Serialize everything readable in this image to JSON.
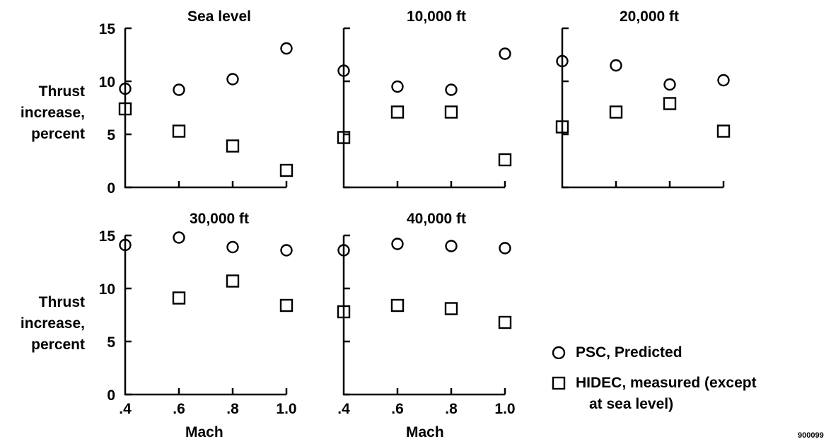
{
  "figure_id": "900099",
  "y_axis_label_lines": [
    "Thrust",
    "increase,",
    "percent"
  ],
  "x_axis_label": "Mach",
  "legend": {
    "psc": "PSC, Predicted",
    "hidec_line1": "HIDEC, measured (except",
    "hidec_line2": "at sea level)"
  },
  "chart_data": [
    {
      "type": "scatter",
      "title": "Sea level",
      "xlabel": "",
      "ylabel": "Thrust increase, percent",
      "x": [
        0.4,
        0.6,
        0.8,
        1.0
      ],
      "series": [
        {
          "name": "PSC, Predicted",
          "marker": "circle",
          "values": [
            9.3,
            9.2,
            10.2,
            13.1
          ]
        },
        {
          "name": "HIDEC, measured (except at sea level)",
          "marker": "square",
          "values": [
            7.4,
            5.3,
            3.9,
            1.6
          ]
        }
      ],
      "xlim": [
        0.4,
        1.0
      ],
      "ylim": [
        0,
        15
      ],
      "yticks": [
        "0",
        "5",
        "10",
        "15"
      ],
      "xticks": []
    },
    {
      "type": "scatter",
      "title": "10,000 ft",
      "xlabel": "",
      "ylabel": "",
      "x": [
        0.4,
        0.6,
        0.8,
        1.0
      ],
      "series": [
        {
          "name": "PSC, Predicted",
          "marker": "circle",
          "values": [
            11.0,
            9.5,
            9.2,
            12.6
          ]
        },
        {
          "name": "HIDEC, measured (except at sea level)",
          "marker": "square",
          "values": [
            4.7,
            7.1,
            7.1,
            2.6
          ]
        }
      ],
      "xlim": [
        0.4,
        1.0
      ],
      "ylim": [
        0,
        15
      ],
      "yticks": [],
      "xticks": []
    },
    {
      "type": "scatter",
      "title": "20,000 ft",
      "xlabel": "",
      "ylabel": "",
      "x": [
        0.4,
        0.6,
        0.8,
        1.0
      ],
      "series": [
        {
          "name": "PSC, Predicted",
          "marker": "circle",
          "values": [
            11.9,
            11.5,
            9.7,
            10.1
          ]
        },
        {
          "name": "HIDEC, measured (except at sea level)",
          "marker": "square",
          "values": [
            5.7,
            7.1,
            7.9,
            5.3
          ]
        }
      ],
      "xlim": [
        0.4,
        1.0
      ],
      "ylim": [
        0,
        15
      ],
      "yticks": [],
      "xticks": []
    },
    {
      "type": "scatter",
      "title": "30,000 ft",
      "xlabel": "Mach",
      "ylabel": "Thrust increase, percent",
      "x": [
        0.4,
        0.6,
        0.8,
        1.0
      ],
      "series": [
        {
          "name": "PSC, Predicted",
          "marker": "circle",
          "values": [
            14.1,
            14.8,
            13.9,
            13.6
          ]
        },
        {
          "name": "HIDEC, measured (except at sea level)",
          "marker": "square",
          "values": [
            null,
            9.1,
            10.7,
            8.4
          ]
        }
      ],
      "xlim": [
        0.4,
        1.0
      ],
      "ylim": [
        0,
        15
      ],
      "yticks": [
        "0",
        "5",
        "10",
        "15"
      ],
      "xticks": [
        ".4",
        ".6",
        ".8",
        "1.0"
      ]
    },
    {
      "type": "scatter",
      "title": "40,000 ft",
      "xlabel": "Mach",
      "ylabel": "",
      "x": [
        0.4,
        0.6,
        0.8,
        1.0
      ],
      "series": [
        {
          "name": "PSC, Predicted",
          "marker": "circle",
          "values": [
            13.6,
            14.2,
            14.0,
            13.8
          ]
        },
        {
          "name": "HIDEC, measured (except at sea level)",
          "marker": "square",
          "values": [
            7.8,
            8.4,
            8.1,
            6.8
          ]
        }
      ],
      "xlim": [
        0.4,
        1.0
      ],
      "ylim": [
        0,
        15
      ],
      "yticks": [],
      "xticks": [
        ".4",
        ".6",
        ".8",
        "1.0"
      ]
    }
  ]
}
